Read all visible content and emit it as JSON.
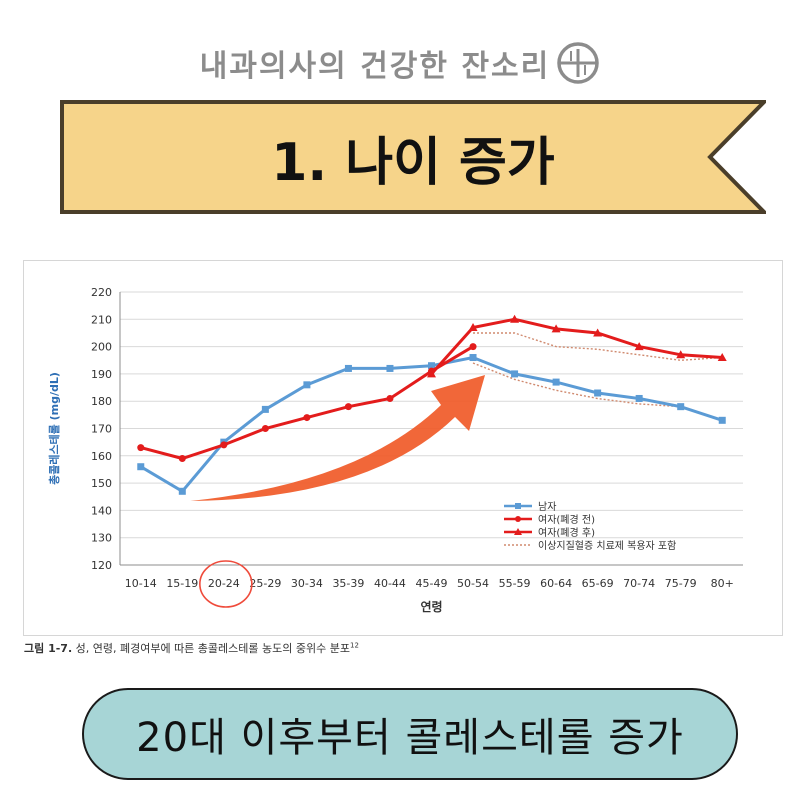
{
  "header": {
    "title": "내과의사의 건강한 잔소리"
  },
  "banner": {
    "text": "1. 나이 증가"
  },
  "caption": {
    "figure": "그림 1-7.",
    "text": " 성, 연령, 폐경여부에 따른 총콜레스테롤 농도의 중위수 분포",
    "ref": "12"
  },
  "pill": {
    "text": "20대 이후부터 콜레스테롤 증가"
  },
  "colors": {
    "male": "#5b9bd5",
    "female": "#e31c1c",
    "dotted": "#d08a6f",
    "arrow": "#f05a28",
    "circle": "#ef4b3b",
    "banner_fill": "#f6d48a",
    "banner_border": "#4a3e2a",
    "pill_fill": "#a7d5d6"
  },
  "chart_data": {
    "type": "line",
    "title": "",
    "xlabel": "연령",
    "ylabel": "총콜레스테롤 (mg/dL)",
    "ylim": [
      120,
      220
    ],
    "yticks": [
      120,
      130,
      140,
      150,
      160,
      170,
      180,
      190,
      200,
      210,
      220
    ],
    "grid": true,
    "legend_position": "bottom-right",
    "categories": [
      "10-14",
      "15-19",
      "20-24",
      "25-29",
      "30-34",
      "35-39",
      "40-44",
      "45-49",
      "50-54",
      "55-59",
      "60-64",
      "65-69",
      "70-74",
      "75-79",
      "80+"
    ],
    "series": [
      {
        "name": "남자",
        "marker": "square",
        "values": [
          156,
          147,
          165,
          177,
          186,
          192,
          192,
          193,
          196,
          190,
          187,
          183,
          181,
          178,
          173
        ]
      },
      {
        "name": "여자(폐경 전)",
        "marker": "circle",
        "values": [
          163,
          159,
          164,
          170,
          174,
          178,
          181,
          191,
          200,
          null,
          null,
          null,
          null,
          null,
          null
        ]
      },
      {
        "name": "여자(폐경 후)",
        "marker": "triangle",
        "values": [
          null,
          null,
          null,
          null,
          null,
          null,
          null,
          190,
          207,
          210,
          206.5,
          205,
          200,
          197,
          196
        ]
      },
      {
        "name": "이상지질혈증 치료제 복용자 포함",
        "marker": "none",
        "style": "dotted",
        "values": [
          null,
          null,
          null,
          null,
          null,
          null,
          null,
          null,
          194,
          188,
          184,
          181,
          179,
          178,
          173
        ]
      },
      {
        "name": "이상지질혈증 치료제 복용자 포함",
        "marker": "none",
        "style": "dotted",
        "values": [
          null,
          null,
          null,
          null,
          null,
          null,
          null,
          null,
          205,
          205,
          200,
          199,
          197,
          195,
          196
        ]
      }
    ],
    "legend": [
      "남자",
      "여자(폐경 전)",
      "여자(폐경 후)",
      "이상지질혈증 치료제 복용자 포함"
    ],
    "annotations": [
      {
        "type": "circle",
        "category": "20-24"
      },
      {
        "type": "arrow",
        "from_category": "15-19",
        "to_category": "50-54",
        "meaning": "increasing trend"
      }
    ]
  }
}
